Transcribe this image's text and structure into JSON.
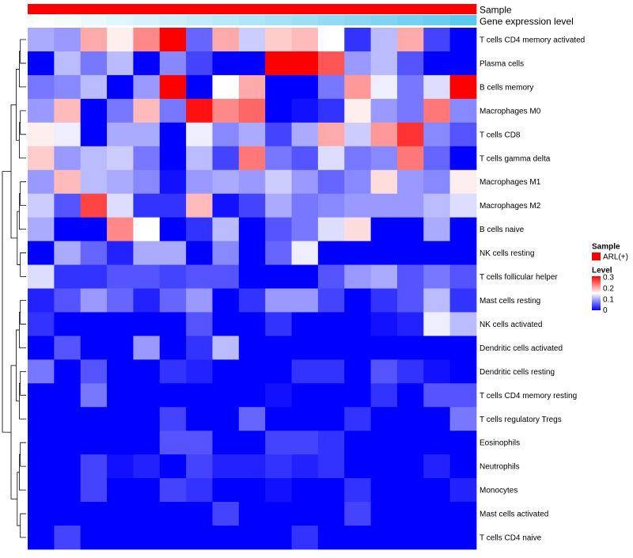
{
  "chart_data": {
    "type": "heatmap",
    "title": "",
    "rows": [
      "T cells CD4 memory activated",
      "Plasma cells",
      "B cells memory",
      "Macrophages M0",
      "T cells CD8",
      "T cells gamma delta",
      "Macrophages M1",
      "Macrophages M2",
      "B cells naive",
      "NK cells resting",
      "T cells follicular helper",
      "Mast cells resting",
      "NK cells activated",
      "Dendritic cells activated",
      "Dendritic cells resting",
      "T cells CD4 memory resting",
      "T cells regulatory  Tregs",
      "Eosinophils",
      "Neutrophils",
      "Monocytes",
      "Mast cells activated",
      "T cells CD4 naive"
    ],
    "n_columns": 17,
    "values": [
      [
        0.1,
        0.09,
        0.2,
        0.16,
        0.22,
        0.3,
        0.06,
        0.2,
        0.12,
        0.18,
        0.19,
        0.15,
        0.03,
        0.11,
        0.2,
        0.04,
        0.0
      ],
      [
        0.0,
        0.11,
        0.07,
        0.11,
        0.0,
        0.08,
        0.04,
        0.0,
        0.0,
        0.3,
        0.3,
        0.25,
        0.09,
        0.11,
        0.05,
        0.0,
        0.0
      ],
      [
        0.07,
        0.08,
        0.11,
        0.0,
        0.09,
        0.3,
        0.0,
        0.15,
        0.2,
        0.0,
        0.0,
        0.07,
        0.21,
        0.14,
        0.07,
        0.13,
        0.3
      ],
      [
        0.09,
        0.19,
        0.0,
        0.07,
        0.19,
        0.07,
        0.29,
        0.22,
        0.24,
        0.0,
        0.01,
        0.03,
        0.16,
        0.09,
        0.07,
        0.23,
        0.08
      ],
      [
        0.16,
        0.14,
        0.0,
        0.1,
        0.1,
        0.0,
        0.14,
        0.08,
        0.1,
        0.04,
        0.1,
        0.2,
        0.12,
        0.21,
        0.27,
        0.08,
        0.05
      ],
      [
        0.18,
        0.09,
        0.11,
        0.12,
        0.07,
        0.0,
        0.11,
        0.04,
        0.23,
        0.07,
        0.05,
        0.13,
        0.07,
        0.08,
        0.23,
        0.06,
        0.0
      ],
      [
        0.09,
        0.19,
        0.11,
        0.1,
        0.08,
        0.01,
        0.09,
        0.1,
        0.09,
        0.12,
        0.09,
        0.06,
        0.08,
        0.17,
        0.09,
        0.08,
        0.16
      ],
      [
        0.12,
        0.05,
        0.26,
        0.13,
        0.03,
        0.03,
        0.19,
        0.01,
        0.04,
        0.1,
        0.07,
        0.08,
        0.09,
        0.09,
        0.09,
        0.11,
        0.13
      ],
      [
        0.1,
        0.0,
        0.0,
        0.22,
        0.15,
        0.0,
        0.03,
        0.11,
        0.0,
        0.05,
        0.07,
        0.13,
        0.17,
        0.0,
        0.0,
        0.1,
        0.0
      ],
      [
        0.0,
        0.1,
        0.06,
        0.02,
        0.1,
        0.1,
        0.0,
        0.08,
        0.0,
        0.06,
        0.14,
        0.0,
        0.0,
        0.0,
        0.0,
        0.0,
        0.0
      ],
      [
        0.13,
        0.03,
        0.03,
        0.05,
        0.05,
        0.04,
        0.05,
        0.05,
        0.0,
        0.0,
        0.0,
        0.05,
        0.09,
        0.1,
        0.05,
        0.07,
        0.05
      ],
      [
        0.02,
        0.05,
        0.09,
        0.06,
        0.02,
        0.06,
        0.09,
        0.0,
        0.03,
        0.09,
        0.09,
        0.04,
        0.0,
        0.03,
        0.05,
        0.11,
        0.03
      ],
      [
        0.03,
        0.0,
        0.0,
        0.0,
        0.0,
        0.0,
        0.05,
        0.0,
        0.0,
        0.03,
        0.0,
        0.0,
        0.0,
        0.01,
        0.02,
        0.14,
        0.11
      ],
      [
        0.0,
        0.05,
        0.0,
        0.0,
        0.09,
        0.0,
        0.03,
        0.11,
        0.0,
        0.0,
        0.0,
        0.0,
        0.0,
        0.0,
        0.0,
        0.0,
        0.0
      ],
      [
        0.07,
        0.0,
        0.05,
        0.0,
        0.0,
        0.03,
        0.02,
        0.0,
        0.0,
        0.0,
        0.03,
        0.03,
        0.0,
        0.05,
        0.03,
        0.01,
        0.0
      ],
      [
        0.0,
        0.0,
        0.07,
        0.0,
        0.0,
        0.0,
        0.0,
        0.0,
        0.0,
        0.01,
        0.0,
        0.0,
        0.0,
        0.03,
        0.0,
        0.05,
        0.05
      ],
      [
        0.0,
        0.0,
        0.0,
        0.0,
        0.0,
        0.04,
        0.0,
        0.0,
        0.06,
        0.0,
        0.0,
        0.0,
        0.03,
        0.0,
        0.0,
        0.0,
        0.07
      ],
      [
        0.0,
        0.0,
        0.0,
        0.0,
        0.0,
        0.05,
        0.05,
        0.0,
        0.0,
        0.04,
        0.04,
        0.03,
        0.0,
        0.0,
        0.0,
        0.0,
        0.0
      ],
      [
        0.0,
        0.0,
        0.04,
        0.01,
        0.02,
        0.0,
        0.04,
        0.02,
        0.02,
        0.03,
        0.02,
        0.03,
        0.0,
        0.0,
        0.0,
        0.02,
        0.0
      ],
      [
        0.0,
        0.0,
        0.04,
        0.0,
        0.0,
        0.04,
        0.03,
        0.0,
        0.0,
        0.01,
        0.0,
        0.0,
        0.03,
        0.0,
        0.0,
        0.0,
        0.02
      ],
      [
        0.0,
        0.0,
        0.0,
        0.0,
        0.0,
        0.0,
        0.0,
        0.04,
        0.0,
        0.0,
        0.0,
        0.0,
        0.04,
        0.0,
        0.0,
        0.0,
        0.0
      ],
      [
        0.0,
        0.04,
        0.0,
        0.0,
        0.0,
        0.0,
        0.0,
        0.0,
        0.0,
        0.0,
        0.03,
        0.0,
        0.0,
        0.0,
        0.0,
        0.0,
        0.0
      ]
    ],
    "sample_annotation": {
      "label": "Sample",
      "values": [
        "ARL(+)",
        "ARL(+)",
        "ARL(+)",
        "ARL(+)",
        "ARL(+)",
        "ARL(+)",
        "ARL(+)",
        "ARL(+)",
        "ARL(+)",
        "ARL(+)",
        "ARL(+)",
        "ARL(+)",
        "ARL(+)",
        "ARL(+)",
        "ARL(+)",
        "ARL(+)",
        "ARL(+)"
      ],
      "color": "#ff0000"
    },
    "expression_annotation": {
      "label": "Gene expression level",
      "values": [
        0.0,
        0.06,
        0.12,
        0.18,
        0.24,
        0.3,
        0.36,
        0.42,
        0.48,
        0.54,
        0.6,
        0.66,
        0.72,
        0.78,
        0.84,
        0.9,
        1.0
      ],
      "low_color": "#ffffff",
      "high_color": "#5bc8ee"
    },
    "legend": {
      "sample_title": "Sample",
      "sample_entry": "ARL(+)",
      "level_title": "Level",
      "level_ticks": [
        "0.3",
        "0.2",
        "0.1",
        "0"
      ],
      "level_range": [
        0,
        0.3
      ]
    },
    "colors": {
      "low": "#0000ff",
      "mid": "#ffffff",
      "high": "#ff0000",
      "grid": "#ffffff",
      "dendrogram": "#000000"
    }
  }
}
